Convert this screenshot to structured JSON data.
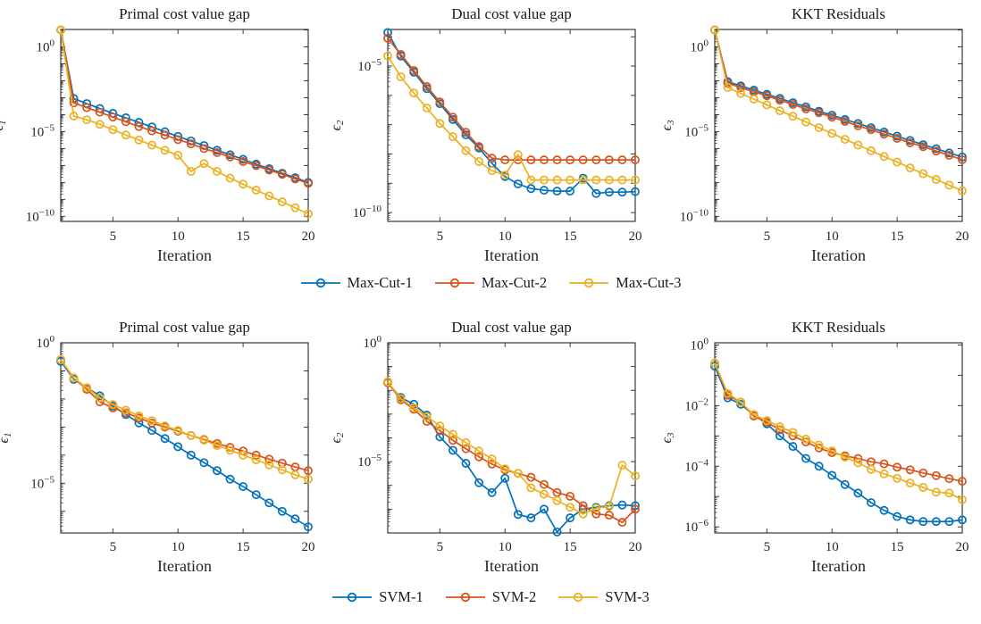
{
  "figure": {
    "background": "#ffffff",
    "axis_color": "#262626",
    "text_color": "#1a1a1a"
  },
  "xlabel": "Iteration",
  "xticks": [
    5,
    10,
    15,
    20
  ],
  "x_iterations": [
    1,
    2,
    3,
    4,
    5,
    6,
    7,
    8,
    9,
    10,
    11,
    12,
    13,
    14,
    15,
    16,
    17,
    18,
    19,
    20
  ],
  "palette": {
    "blue": "#0072BD",
    "orange": "#D95319",
    "yellow": "#EDB120"
  },
  "chart_data": {
    "note": "see rows[].charts[] — type line, log-y, markers o"
  },
  "rows": [
    {
      "legend": [
        {
          "label": "Max-Cut-1",
          "color": "#0072BD"
        },
        {
          "label": "Max-Cut-2",
          "color": "#D95319"
        },
        {
          "label": "Max-Cut-3",
          "color": "#EDB120"
        }
      ],
      "charts": [
        {
          "type": "line",
          "title": "Primal cost value gap",
          "ylabel": {
            "symbol": "ϵ",
            "sub": "1"
          },
          "ylim_exp": [
            -10.3,
            1.03
          ],
          "yticks_labeled_exp": [
            0,
            -5,
            -10
          ],
          "ylabel_x": -2,
          "series": [
            {
              "name": "Max-Cut-1",
              "color": "#0072BD",
              "values": [
                10,
                0.0009,
                0.00045,
                0.00023,
                0.00012,
                6.5e-05,
                3.5e-05,
                1.9e-05,
                9.8e-06,
                5.2e-06,
                2.8e-06,
                1.5e-06,
                7.9e-07,
                4.3e-07,
                2.3e-07,
                1.2e-07,
                6.5e-08,
                3.5e-08,
                1.9e-08,
                1e-08
              ]
            },
            {
              "name": "Max-Cut-2",
              "color": "#D95319",
              "values": [
                10,
                0.0005,
                0.00026,
                0.00014,
                7.2e-05,
                3.8e-05,
                2e-05,
                1.1e-05,
                6.2e-06,
                3.4e-06,
                1.9e-06,
                1e-06,
                5.8e-07,
                3.2e-07,
                1.7e-07,
                9.8e-08,
                5.4e-08,
                3e-08,
                1.6e-08,
                8.9e-09
              ]
            },
            {
              "name": "Max-Cut-3",
              "color": "#EDB120",
              "values": [
                10,
                8.3e-05,
                5e-05,
                2.7e-05,
                1.3e-05,
                6.3e-06,
                3.2e-06,
                1.6e-06,
                7.9e-07,
                4e-07,
                4.5e-08,
                1.3e-07,
                4.5e-08,
                1.8e-08,
                7.9e-09,
                3.5e-09,
                1.6e-09,
                7.1e-10,
                3.2e-10,
                1.4e-10
              ]
            }
          ]
        },
        {
          "type": "line",
          "title": "Dual cost value gap",
          "ylabel": {
            "symbol": "ϵ",
            "sub": "2"
          },
          "ylim_exp": [
            -10.3,
            -3.75
          ],
          "yticks_labeled_exp": [
            -5,
            -10
          ],
          "ylabel_x": 10,
          "series": [
            {
              "name": "Max-Cut-1",
              "color": "#0072BD",
              "values": [
                0.00014,
                2.2e-05,
                6.2e-06,
                1.7e-06,
                5.2e-07,
                1.5e-07,
                4.5e-08,
                1.6e-08,
                4.8e-09,
                1.7e-09,
                9.5e-10,
                6.6e-10,
                5.8e-10,
                5.4e-10,
                5.4e-10,
                1.5e-09,
                4.5e-10,
                5e-10,
                5e-10,
                5.2e-10
              ]
            },
            {
              "name": "Max-Cut-2",
              "color": "#D95319",
              "values": [
                8.9e-05,
                2.5e-05,
                7.1e-06,
                2e-06,
                6e-07,
                1.8e-07,
                5.5e-08,
                1.8e-08,
                7.2e-09,
                6.3e-09,
                6.3e-09,
                6.3e-09,
                6.3e-09,
                6.3e-09,
                6.3e-09,
                6.3e-09,
                6.3e-09,
                6.3e-09,
                6.3e-09,
                6.3e-09
              ]
            },
            {
              "name": "Max-Cut-3",
              "color": "#EDB120",
              "values": [
                2.2e-05,
                4.3e-06,
                1.2e-06,
                3.7e-07,
                1.1e-07,
                3.9e-08,
                1.3e-08,
                5.5e-09,
                2.7e-09,
                1.9e-09,
                9.5e-09,
                1.3e-09,
                1.3e-09,
                1.3e-09,
                1.3e-09,
                1.3e-09,
                1.3e-09,
                1.3e-09,
                1.3e-09,
                1.3e-09
              ]
            }
          ]
        },
        {
          "type": "line",
          "title": "KKT Residuals",
          "ylabel": {
            "symbol": "ϵ",
            "sub": "3"
          },
          "ylim_exp": [
            -10.3,
            1.03
          ],
          "yticks_labeled_exp": [
            0,
            -5,
            -10
          ],
          "ylabel_x": 14,
          "series": [
            {
              "name": "Max-Cut-1",
              "color": "#0072BD",
              "values": [
                10,
                0.0089,
                0.005,
                0.0028,
                0.0016,
                0.00091,
                0.00051,
                0.00029,
                0.00016,
                9.3e-05,
                5.2e-05,
                3e-05,
                1.7e-05,
                9.5e-06,
                5.4e-06,
                3e-06,
                1.7e-06,
                9.8e-07,
                5.5e-07,
                3.2e-07
              ]
            },
            {
              "name": "Max-Cut-2",
              "color": "#D95319",
              "values": [
                10,
                0.0071,
                0.004,
                0.0022,
                0.0013,
                0.00071,
                0.0004,
                0.00022,
                0.00013,
                7.1e-05,
                4e-05,
                2.2e-05,
                1.3e-05,
                7.1e-06,
                4e-06,
                2.2e-06,
                1.3e-06,
                7.1e-07,
                4e-07,
                2.2e-07
              ]
            },
            {
              "name": "Max-Cut-3",
              "color": "#EDB120",
              "values": [
                10,
                0.004,
                0.0018,
                0.00083,
                0.00038,
                0.00017,
                8.1e-05,
                3.7e-05,
                1.7e-05,
                7.8e-06,
                3.5e-06,
                1.6e-06,
                7.4e-07,
                3.4e-07,
                1.6e-07,
                7.2e-08,
                3.3e-08,
                1.5e-08,
                6.9e-09,
                3.2e-09
              ]
            }
          ]
        }
      ]
    },
    {
      "legend": [
        {
          "label": "SVM-1",
          "color": "#0072BD"
        },
        {
          "label": "SVM-2",
          "color": "#D95319"
        },
        {
          "label": "SVM-3",
          "color": "#EDB120"
        }
      ],
      "charts": [
        {
          "type": "line",
          "title": "Primal cost value gap",
          "ylabel": {
            "symbol": "ϵ",
            "sub": "1"
          },
          "ylim_exp": [
            -6.77,
            0
          ],
          "yticks_labeled_exp": [
            0,
            -5
          ],
          "ylabel_x": 4,
          "series": [
            {
              "name": "SVM-1",
              "color": "#0072BD",
              "values": [
                0.22,
                0.05,
                0.025,
                0.013,
                0.0056,
                0.0028,
                0.0014,
                0.00076,
                0.00039,
                0.0002,
                0.0001,
                5.4e-05,
                2.8e-05,
                1.4e-05,
                7.6e-06,
                3.9e-06,
                2e-06,
                1e-06,
                5.4e-07,
                2.8e-07
              ]
            },
            {
              "name": "SVM-2",
              "color": "#D95319",
              "values": [
                0.25,
                0.056,
                0.022,
                0.0079,
                0.0048,
                0.0032,
                0.0021,
                0.0014,
                0.001,
                0.00071,
                0.0005,
                0.00036,
                0.00026,
                0.00019,
                0.00014,
                0.0001,
                7.2e-05,
                5.2e-05,
                3.8e-05,
                2.8e-05
              ]
            },
            {
              "name": "SVM-3",
              "color": "#EDB120",
              "values": [
                0.25,
                0.056,
                0.025,
                0.011,
                0.0063,
                0.004,
                0.0025,
                0.0017,
                0.0011,
                0.00076,
                0.0005,
                0.00034,
                0.00022,
                0.00015,
                0.0001,
                6.8e-05,
                4.5e-05,
                3e-05,
                2e-05,
                1.4e-05
              ]
            }
          ]
        },
        {
          "type": "line",
          "title": "Dual cost value gap",
          "ylabel": {
            "symbol": "ϵ",
            "sub": "2"
          },
          "ylim_exp": [
            -8.0,
            0
          ],
          "yticks_labeled_exp": [
            0,
            -5
          ],
          "ylabel_x": 10,
          "series": [
            {
              "name": "SVM-1",
              "color": "#0072BD",
              "values": [
                0.021,
                0.005,
                0.0026,
                0.00091,
                0.00011,
                3e-05,
                8.5e-06,
                1.3e-06,
                5e-07,
                2e-06,
                6e-08,
                4.3e-08,
                1e-07,
                1.1e-08,
                4.3e-08,
                1e-07,
                1.2e-07,
                1.4e-07,
                1.5e-07,
                1.4e-07
              ]
            },
            {
              "name": "SVM-2",
              "color": "#D95319",
              "values": [
                0.021,
                0.004,
                0.0016,
                0.0005,
                0.0002,
                7.9e-05,
                3.5e-05,
                1.6e-05,
                7.9e-06,
                4.5e-06,
                3.2e-06,
                2.2e-06,
                1.1e-06,
                5e-07,
                3.5e-07,
                1.4e-07,
                6.3e-08,
                5.6e-08,
                2.8e-08,
                1e-07
              ]
            },
            {
              "name": "SVM-3",
              "color": "#EDB120",
              "values": [
                0.023,
                0.0045,
                0.0018,
                0.00079,
                0.00032,
                0.00014,
                6.3e-05,
                2.8e-05,
                1.3e-05,
                5e-06,
                3.2e-06,
                7.9e-07,
                4.3e-07,
                2.3e-07,
                1.2e-07,
                6.3e-08,
                1.1e-07,
                1.3e-07,
                7.1e-06,
                2.5e-06
              ]
            }
          ]
        },
        {
          "type": "line",
          "title": "KKT Residuals",
          "ylabel": {
            "symbol": "ϵ",
            "sub": "3"
          },
          "ylim_exp": [
            -6.2,
            0.07
          ],
          "yticks_labeled_exp": [
            0,
            -2,
            -4,
            -6
          ],
          "ylabel_x": 14,
          "series": [
            {
              "name": "SVM-1",
              "color": "#0072BD",
              "values": [
                0.2,
                0.018,
                0.011,
                0.005,
                0.0025,
                0.001,
                0.00045,
                0.00018,
                0.0001,
                5e-05,
                2.5e-05,
                1.3e-05,
                6.3e-06,
                3.5e-06,
                2.2e-06,
                1.7e-06,
                1.5e-06,
                1.5e-06,
                1.5e-06,
                1.7e-06
              ]
            },
            {
              "name": "SVM-2",
              "color": "#D95319",
              "values": [
                0.25,
                0.022,
                0.013,
                0.0045,
                0.0028,
                0.0016,
                0.001,
                0.00063,
                0.0004,
                0.00028,
                0.00022,
                0.00018,
                0.00014,
                0.00012,
                9.3e-05,
                7.6e-05,
                6e-05,
                4.9e-05,
                3.9e-05,
                3.2e-05
              ]
            },
            {
              "name": "SVM-3",
              "color": "#EDB120",
              "values": [
                0.25,
                0.025,
                0.013,
                0.005,
                0.0032,
                0.002,
                0.0013,
                0.00079,
                0.0005,
                0.00032,
                0.0002,
                0.00013,
                7.9e-05,
                5.6e-05,
                4e-05,
                2.8e-05,
                2e-05,
                1.4e-05,
                1.3e-05,
                7.9e-06
              ]
            }
          ]
        }
      ]
    }
  ]
}
